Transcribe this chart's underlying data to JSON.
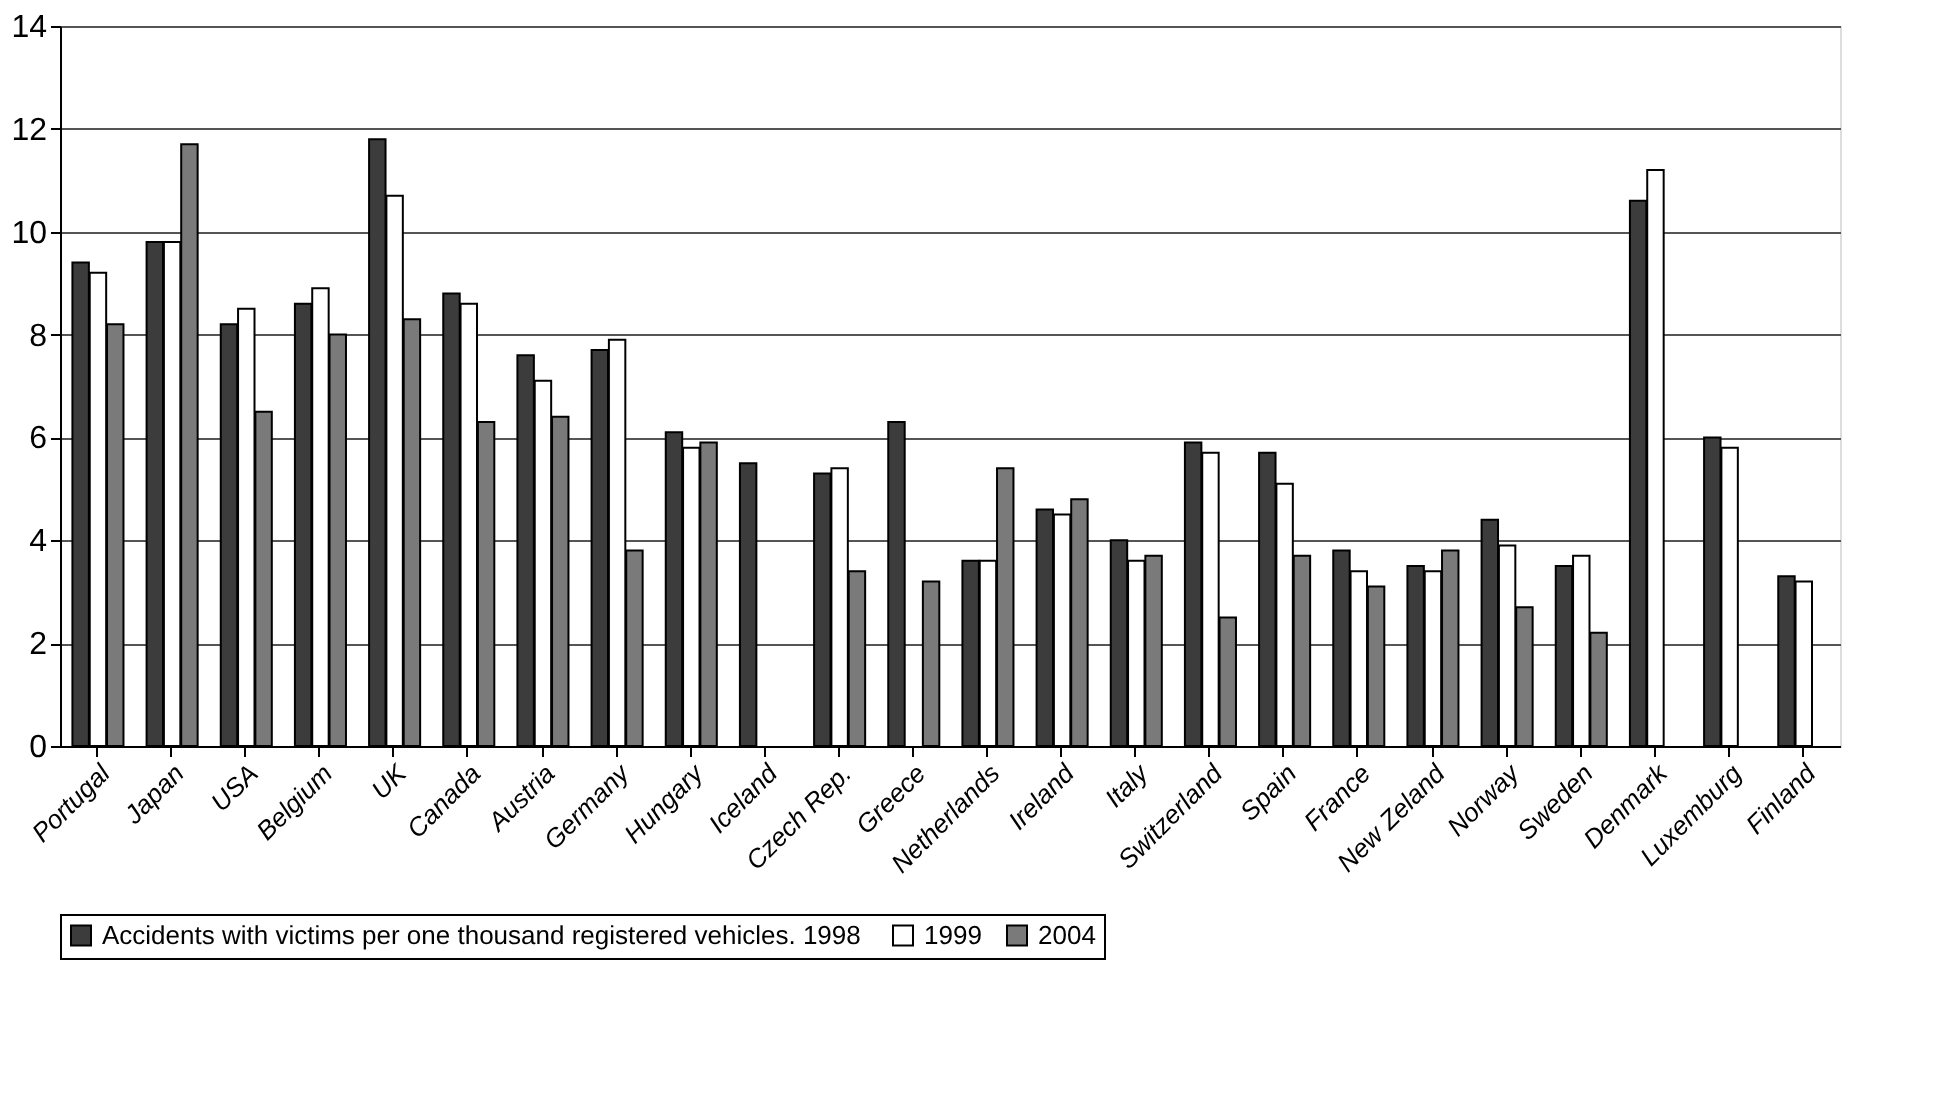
{
  "chart_data": {
    "type": "bar",
    "categories": [
      "Portugal",
      "Japan",
      "USA",
      "Belgium",
      "UK",
      "Canada",
      "Austria",
      "Germany",
      "Hungary",
      "Iceland",
      "Czech Rep.",
      "Greece",
      "Netherlands",
      "Ireland",
      "Italy",
      "Switzerland",
      "Spain",
      "France",
      "New Zeland",
      "Norway",
      "Sweden",
      "Denmark",
      "Luxemburg",
      "Finland"
    ],
    "series": [
      {
        "name": "Accidents with victims per one thousand  registered vehicles. 1998",
        "color": "#3c3c3c",
        "values": [
          9.4,
          9.8,
          8.2,
          8.6,
          11.8,
          8.8,
          7.6,
          7.7,
          6.1,
          5.5,
          5.3,
          6.3,
          3.6,
          4.6,
          4.0,
          5.9,
          5.7,
          3.8,
          3.5,
          4.4,
          3.5,
          10.6,
          6.0,
          3.3
        ]
      },
      {
        "name": "1999",
        "color": "#ffffff",
        "values": [
          9.2,
          9.8,
          8.5,
          8.9,
          10.7,
          8.6,
          7.1,
          7.9,
          5.8,
          null,
          5.4,
          null,
          3.6,
          4.5,
          3.6,
          5.7,
          5.1,
          3.4,
          3.4,
          3.9,
          3.7,
          11.2,
          5.8,
          3.2
        ]
      },
      {
        "name": "2004",
        "color": "#7a7a7a",
        "values": [
          8.2,
          11.7,
          6.5,
          8.0,
          8.3,
          6.3,
          6.4,
          3.8,
          5.9,
          null,
          3.4,
          3.2,
          5.4,
          4.8,
          3.7,
          2.5,
          3.7,
          3.1,
          3.8,
          2.7,
          2.2,
          null,
          null,
          null
        ]
      }
    ],
    "ylim": [
      0,
      14
    ],
    "yticks": [
      0,
      2,
      4,
      6,
      8,
      10,
      12,
      14
    ],
    "grid": "y",
    "legend": "bottom"
  }
}
